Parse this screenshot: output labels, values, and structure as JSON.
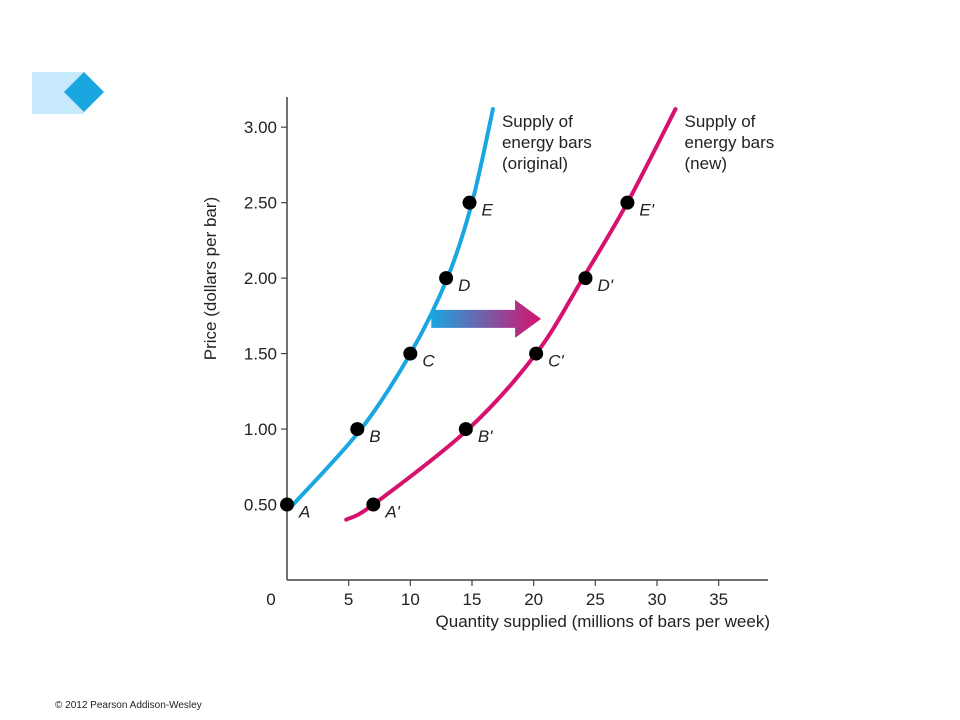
{
  "chart_data": {
    "type": "line",
    "xlabel": "Quantity supplied (millions of bars per week)",
    "ylabel": "Price (dollars per bar)",
    "xlim": [
      0,
      39
    ],
    "ylim": [
      0,
      3.2
    ],
    "x_ticks": [
      "0",
      "5",
      "10",
      "15",
      "20",
      "25",
      "30",
      "35"
    ],
    "x_tick_values": [
      0,
      5,
      10,
      15,
      20,
      25,
      30,
      35
    ],
    "y_ticks": [
      "0.50",
      "1.00",
      "1.50",
      "2.00",
      "2.50",
      "3.00"
    ],
    "y_tick_values": [
      0.5,
      1.0,
      1.5,
      2.0,
      2.5,
      3.0
    ],
    "grid": false,
    "series": [
      {
        "name": "Supply of energy bars (original)",
        "label_lines": [
          "Supply of",
          "energy bars",
          "(original)"
        ],
        "color": "#1aa6e0",
        "curve": {
          "x": [
            0.5,
            6,
            10,
            13,
            15,
            16.7
          ],
          "y": [
            0.5,
            1.0,
            1.5,
            2.0,
            2.5,
            3.12
          ]
        },
        "points": [
          {
            "label": "A",
            "x": 0,
            "y": 0.5
          },
          {
            "label": "B",
            "x": 5.7,
            "y": 1.0
          },
          {
            "label": "C",
            "x": 10,
            "y": 1.5
          },
          {
            "label": "D",
            "x": 12.9,
            "y": 2.0
          },
          {
            "label": "E",
            "x": 14.8,
            "y": 2.5
          }
        ]
      },
      {
        "name": "Supply of energy bars (new)",
        "label_lines": [
          "Supply of",
          "energy bars",
          "(new)"
        ],
        "color": "#d6116e",
        "curve": {
          "x": [
            4.8,
            7,
            14.7,
            20.2,
            24,
            27.6,
            31.5
          ],
          "y": [
            0.4,
            0.5,
            1.0,
            1.5,
            2.0,
            2.5,
            3.12
          ]
        },
        "points": [
          {
            "label": "A'",
            "x": 7,
            "y": 0.5
          },
          {
            "label": "B'",
            "x": 14.5,
            "y": 1.0
          },
          {
            "label": "C'",
            "x": 20.2,
            "y": 1.5
          },
          {
            "label": "D'",
            "x": 24.2,
            "y": 2.0
          },
          {
            "label": "E'",
            "x": 27.6,
            "y": 2.5
          }
        ]
      }
    ],
    "annotation": {
      "type": "shift-arrow",
      "from_color": "#1aa6e0",
      "to_color": "#d6116e"
    }
  },
  "copyright": "© 2012 Pearson Addison-Wesley",
  "decoration": {
    "light_color": "#c6e9fb",
    "diamond_color": "#1aa6e0"
  }
}
